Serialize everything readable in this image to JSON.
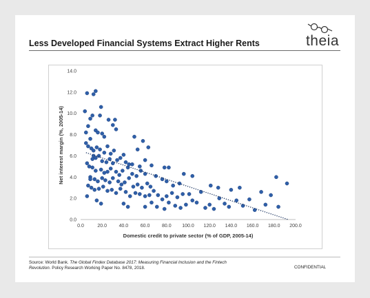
{
  "slide": {
    "title": "Less Developed Financial Systems Extract Higher Rents",
    "logo_text": "theia",
    "logo_icon": "glasses-icon",
    "confidential": "CONFIDENTIAL",
    "source": {
      "prefix": "Source: World Bank. ",
      "italic": "The Global Findex Database 2017: Measuring Financial Inclusion and the Fintech Revolution.",
      "suffix": " Policy Research Working Paper No. 8478, 2018."
    }
  },
  "chart_data": {
    "type": "scatter",
    "title": "",
    "xlabel": "Domestic credit to private sector (% of GDP, 2005-14)",
    "ylabel": "Net interest margin (%, 2005-14)",
    "xlim": [
      0,
      200
    ],
    "ylim": [
      0,
      14
    ],
    "xticks": [
      "0.0",
      "20.0",
      "40.0",
      "60.0",
      "80.0",
      "100.0",
      "120.0",
      "140.0",
      "160.0",
      "180.0",
      "200.0"
    ],
    "yticks": [
      "0.0",
      "2.0",
      "4.0",
      "6.0",
      "8.0",
      "10.0",
      "12.0",
      "14.0"
    ],
    "grid": false,
    "point_color": "#2f5fa8",
    "trendline": {
      "style": "dotted",
      "color": "#1f3864",
      "x": [
        5,
        193
      ],
      "y": [
        6.3,
        0.0
      ]
    },
    "points": [
      [
        4,
        10.2
      ],
      [
        6,
        11.9
      ],
      [
        9,
        7.6
      ],
      [
        12,
        11.8
      ],
      [
        14,
        12.1
      ],
      [
        19,
        10.6
      ],
      [
        18,
        9.8
      ],
      [
        9,
        9.5
      ],
      [
        11,
        9.8
      ],
      [
        5,
        8.2
      ],
      [
        7,
        8.8
      ],
      [
        14,
        8.4
      ],
      [
        16,
        8.2
      ],
      [
        20,
        8.1
      ],
      [
        22,
        7.8
      ],
      [
        26,
        9.4
      ],
      [
        30,
        8.9
      ],
      [
        33,
        8.5
      ],
      [
        32,
        9.4
      ],
      [
        50,
        7.8
      ],
      [
        53,
        6.6
      ],
      [
        58,
        7.4
      ],
      [
        63,
        6.8
      ],
      [
        5,
        7.2
      ],
      [
        7,
        6.9
      ],
      [
        10,
        6.7
      ],
      [
        12,
        6.5
      ],
      [
        15,
        6.8
      ],
      [
        18,
        6.6
      ],
      [
        22,
        6.3
      ],
      [
        25,
        6.9
      ],
      [
        28,
        6.2
      ],
      [
        31,
        6.5
      ],
      [
        12,
        6.0
      ],
      [
        14,
        5.8
      ],
      [
        17,
        6.0
      ],
      [
        20,
        5.5
      ],
      [
        24,
        5.4
      ],
      [
        27,
        5.7
      ],
      [
        30,
        5.3
      ],
      [
        34,
        5.6
      ],
      [
        37,
        5.8
      ],
      [
        40,
        6.1
      ],
      [
        42,
        5.4
      ],
      [
        45,
        5.2
      ],
      [
        6,
        5.3
      ],
      [
        8,
        5.0
      ],
      [
        11,
        4.9
      ],
      [
        14,
        4.6
      ],
      [
        19,
        4.7
      ],
      [
        22,
        4.4
      ],
      [
        25,
        4.5
      ],
      [
        28,
        4.8
      ],
      [
        33,
        4.5
      ],
      [
        36,
        4.2
      ],
      [
        39,
        4.6
      ],
      [
        44,
        4.9
      ],
      [
        48,
        4.3
      ],
      [
        52,
        4.1
      ],
      [
        56,
        4.6
      ],
      [
        60,
        4.3
      ],
      [
        9,
        4.0
      ],
      [
        13,
        3.8
      ],
      [
        16,
        3.6
      ],
      [
        20,
        3.9
      ],
      [
        23,
        3.7
      ],
      [
        27,
        3.5
      ],
      [
        30,
        3.9
      ],
      [
        35,
        3.6
      ],
      [
        38,
        3.3
      ],
      [
        41,
        3.5
      ],
      [
        45,
        3.9
      ],
      [
        49,
        3.1
      ],
      [
        53,
        3.3
      ],
      [
        57,
        3.0
      ],
      [
        62,
        3.4
      ],
      [
        65,
        3.1
      ],
      [
        7,
        3.2
      ],
      [
        10,
        3.0
      ],
      [
        13,
        2.8
      ],
      [
        17,
        2.9
      ],
      [
        21,
        3.1
      ],
      [
        25,
        2.7
      ],
      [
        29,
        2.8
      ],
      [
        33,
        2.5
      ],
      [
        37,
        2.9
      ],
      [
        42,
        2.6
      ],
      [
        46,
        2.2
      ],
      [
        51,
        2.5
      ],
      [
        55,
        2.4
      ],
      [
        60,
        2.2
      ],
      [
        64,
        2.3
      ],
      [
        68,
        2.7
      ],
      [
        72,
        2.3
      ],
      [
        76,
        1.9
      ],
      [
        80,
        2.2
      ],
      [
        85,
        2.5
      ],
      [
        90,
        2.1
      ],
      [
        95,
        2.4
      ],
      [
        101,
        2.4
      ],
      [
        6,
        2.2
      ],
      [
        15,
        1.8
      ],
      [
        19,
        1.5
      ],
      [
        40,
        1.5
      ],
      [
        44,
        1.2
      ],
      [
        60,
        1.2
      ],
      [
        66,
        1.6
      ],
      [
        71,
        1.2
      ],
      [
        78,
        1.0
      ],
      [
        82,
        1.6
      ],
      [
        88,
        1.3
      ],
      [
        93,
        1.1
      ],
      [
        98,
        1.4
      ],
      [
        104,
        1.8
      ],
      [
        108,
        1.6
      ],
      [
        116,
        1.1
      ],
      [
        120,
        1.4
      ],
      [
        124,
        1.0
      ],
      [
        129,
        2.0
      ],
      [
        134,
        1.5
      ],
      [
        138,
        1.2
      ],
      [
        145,
        1.8
      ],
      [
        151,
        1.3
      ],
      [
        157,
        1.9
      ],
      [
        162,
        0.9
      ],
      [
        168,
        2.6
      ],
      [
        172,
        1.4
      ],
      [
        177,
        2.3
      ],
      [
        184,
        1.2
      ],
      [
        192,
        3.4
      ],
      [
        182,
        4.0
      ],
      [
        140,
        2.8
      ],
      [
        148,
        3.0
      ],
      [
        128,
        3.0
      ],
      [
        121,
        3.2
      ],
      [
        112,
        2.6
      ],
      [
        104,
        4.1
      ],
      [
        96,
        4.3
      ],
      [
        92,
        3.4
      ],
      [
        86,
        3.2
      ],
      [
        80,
        3.6
      ],
      [
        76,
        3.8
      ],
      [
        70,
        4.1
      ],
      [
        78,
        4.9
      ],
      [
        82,
        4.9
      ],
      [
        48,
        5.2
      ],
      [
        55,
        5.0
      ],
      [
        60,
        5.6
      ],
      [
        66,
        5.1
      ],
      [
        9,
        3.8
      ],
      [
        11,
        5.7
      ]
    ]
  }
}
